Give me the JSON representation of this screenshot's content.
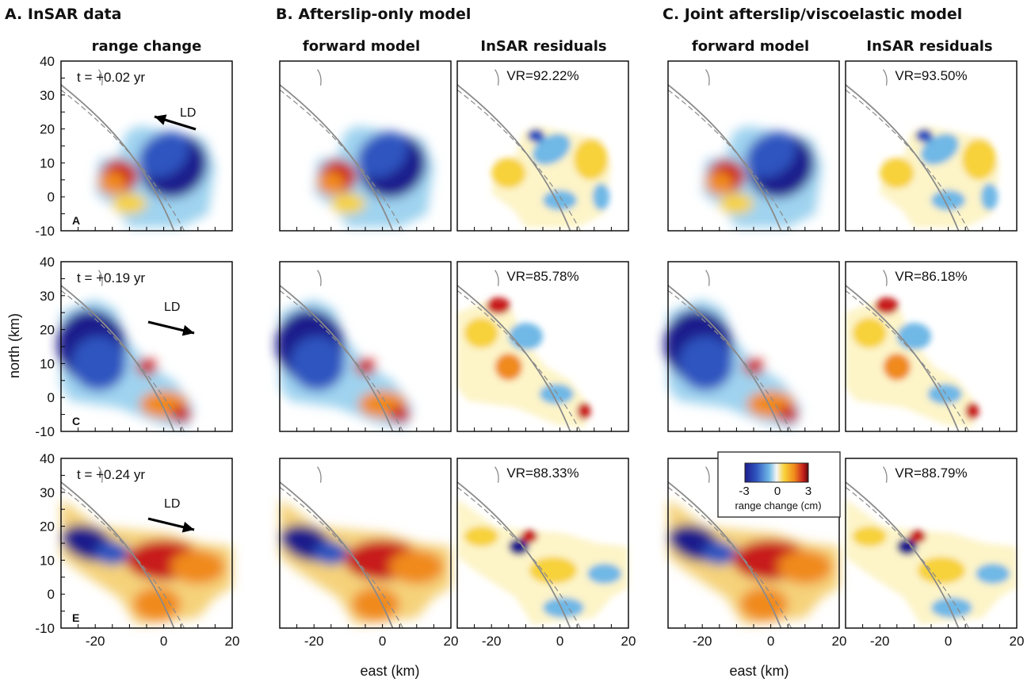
{
  "figure": {
    "columns": [
      {
        "header": "A. InSAR data",
        "panels": [
          {
            "subtitle": "range change"
          }
        ]
      },
      {
        "header": "B. Afterslip-only model",
        "panels": [
          {
            "subtitle": "forward model"
          },
          {
            "subtitle": "InSAR residuals"
          }
        ]
      },
      {
        "header": "C. Joint afterslip/viscoelastic model",
        "panels": [
          {
            "subtitle": "forward model"
          },
          {
            "subtitle": "InSAR residuals"
          }
        ]
      }
    ],
    "rows": [
      {
        "time_label": "t = +0.02 yr",
        "panel_letter": "A",
        "ld_label": "LD",
        "ld_direction": "NW",
        "vr_afterslip": "VR=92.22%",
        "vr_joint": "VR=93.50%"
      },
      {
        "time_label": "t = +0.19 yr",
        "panel_letter": "C",
        "ld_label": "LD",
        "ld_direction": "ESE",
        "vr_afterslip": "VR=85.78%",
        "vr_joint": "VR=86.18%"
      },
      {
        "time_label": "t = +0.24 yr",
        "panel_letter": "E",
        "ld_label": "LD",
        "ld_direction": "ESE",
        "vr_afterslip": "VR=88.33%",
        "vr_joint": "VR=88.79%"
      }
    ],
    "colorbar": {
      "min_label": "-3",
      "mid_label": "0",
      "max_label": "3",
      "label": "range change (cm)",
      "colors": [
        "#1c1c8c",
        "#2f55c0",
        "#6fb8e6",
        "#f5f5f5",
        "#f7d23a",
        "#f08a1c",
        "#c81e1e",
        "#5a0a0a"
      ]
    },
    "colors": {
      "fault": "#8a8a8a",
      "frame": "#000000"
    }
  },
  "chart_data": {
    "type": "heatmap",
    "xlabel": "east (km)",
    "ylabel": "north (km)",
    "xlim": [
      -30,
      20
    ],
    "ylim": [
      -10,
      40
    ],
    "xticks": [
      "-20",
      "0",
      "20"
    ],
    "yticks": [
      "40",
      "30",
      "20",
      "10",
      "0",
      "-10"
    ],
    "units": "cm",
    "value_range": [
      -3,
      3
    ],
    "panels_per_row": [
      "range change",
      "forward model",
      "InSAR residuals",
      "forward model",
      "InSAR residuals"
    ],
    "variance_reduction_percent": {
      "afterslip_only": [
        92.22,
        85.78,
        88.33
      ],
      "joint_afterslip_viscoelastic": [
        93.5,
        86.18,
        88.79
      ]
    },
    "epochs_yr": [
      0.02,
      0.19,
      0.24
    ]
  }
}
